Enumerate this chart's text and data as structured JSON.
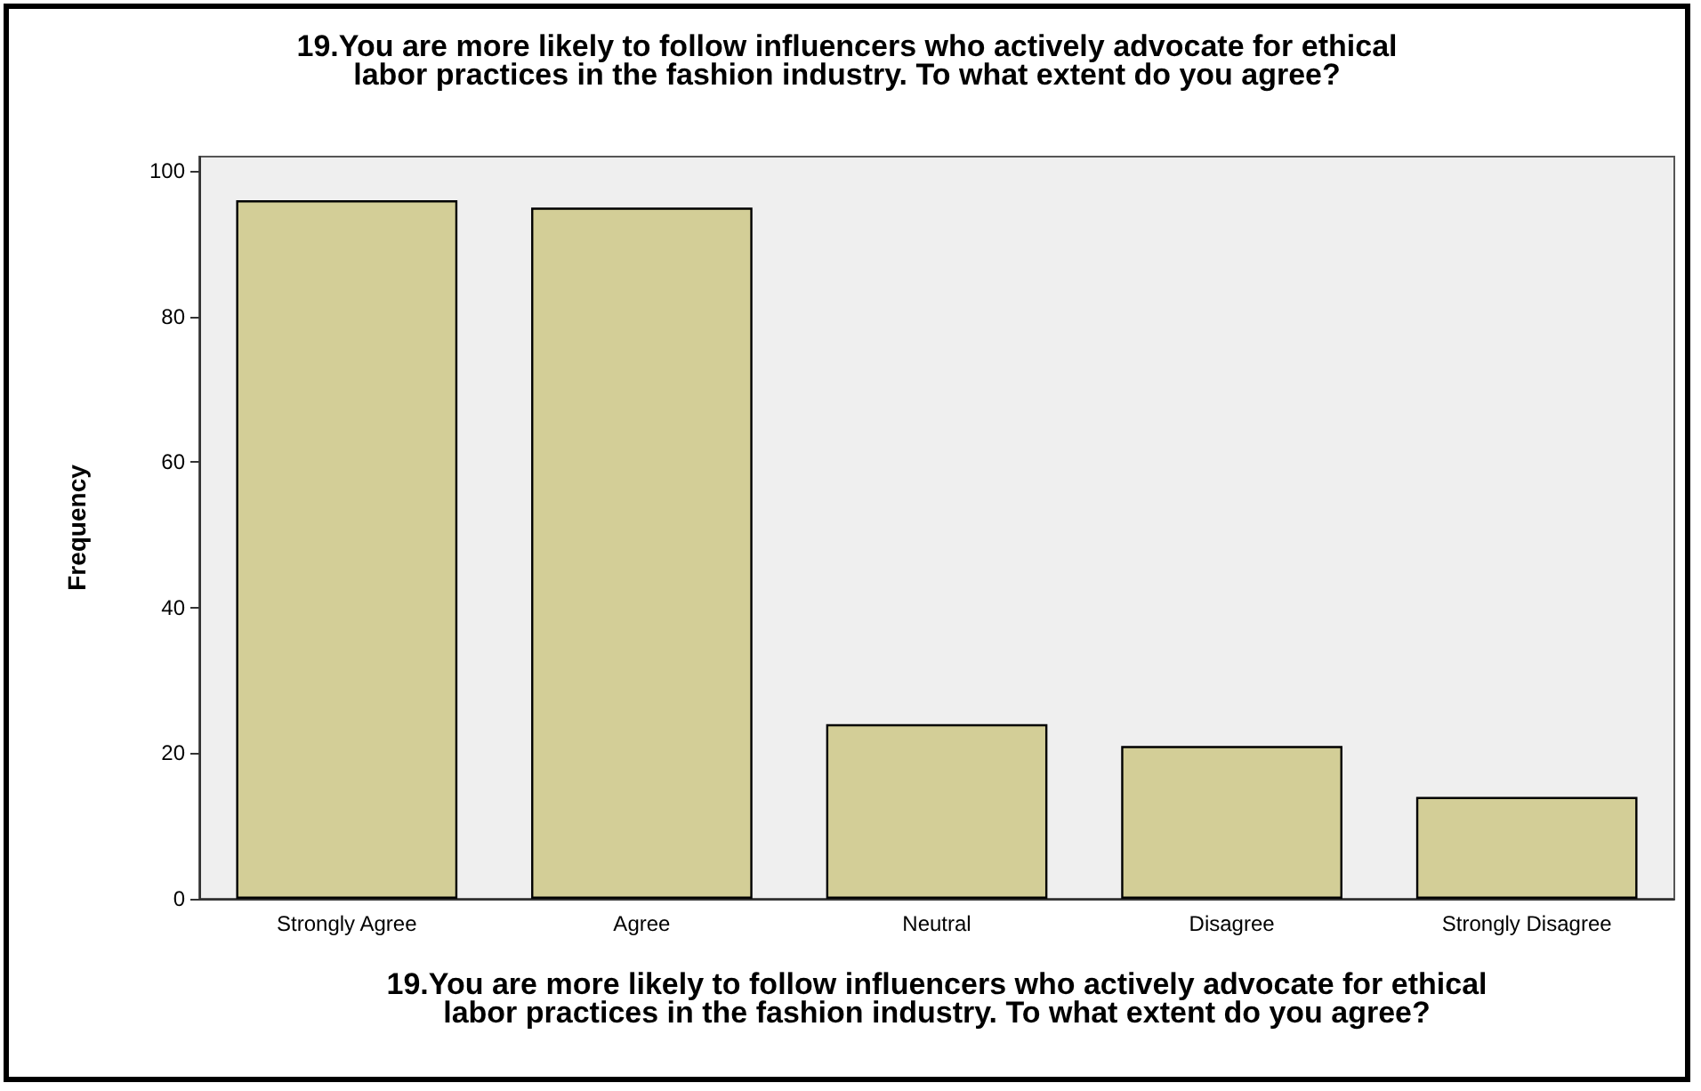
{
  "chart_data": {
    "type": "bar",
    "title": "19.You are more likely to follow influencers who actively advocate for ethical\nlabor practices in the fashion industry. To what extent do you agree?",
    "xlabel": "19.You are more likely to follow influencers who actively advocate for ethical\nlabor practices in the fashion industry. To what extent do you agree?",
    "ylabel": "Frequency",
    "categories": [
      "Strongly Agree",
      "Agree",
      "Neutral",
      "Disagree",
      "Strongly Disagree"
    ],
    "values": [
      96,
      95,
      24,
      21,
      14
    ],
    "color": "#d3ce97",
    "ylim": [
      0,
      102
    ],
    "yticks": [
      0,
      20,
      40,
      60,
      80,
      100
    ],
    "grid": false
  }
}
